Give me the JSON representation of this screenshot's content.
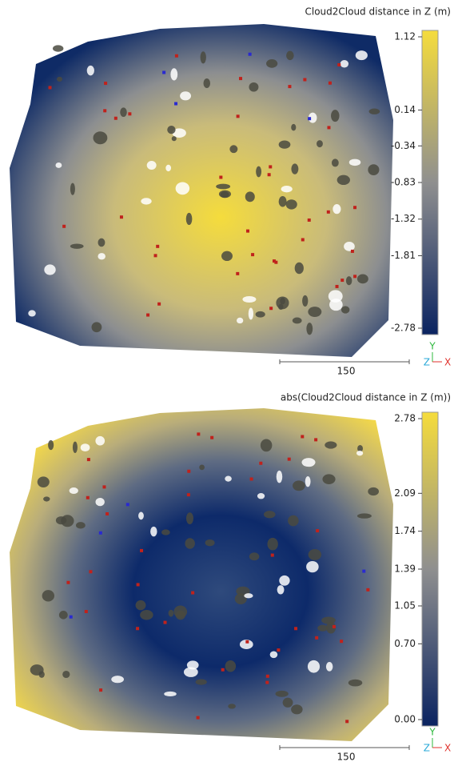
{
  "panels": [
    {
      "colorbar": {
        "title": "Cloud2Cloud distance in Z (m)",
        "lim": [
          -2.78,
          1.12
        ],
        "ticks": [
          1.12,
          0.14,
          -0.34,
          -0.83,
          -1.32,
          -1.81,
          -2.78
        ]
      },
      "scale_bar": 150,
      "axes": {
        "y": "Y",
        "z": "Z",
        "x": "X"
      }
    },
    {
      "colorbar": {
        "title": "abs(Cloud2Cloud distance in Z (m))",
        "lim": [
          0,
          2.78
        ],
        "ticks": [
          2.78,
          2.09,
          1.74,
          1.39,
          1.05,
          {
            "value": 0.7,
            "label": "0.70"
          },
          {
            "value": 0,
            "label": "0.00"
          }
        ]
      },
      "scale_bar": 150,
      "axes": {
        "y": "Y",
        "z": "Z",
        "x": "X"
      }
    }
  ]
}
